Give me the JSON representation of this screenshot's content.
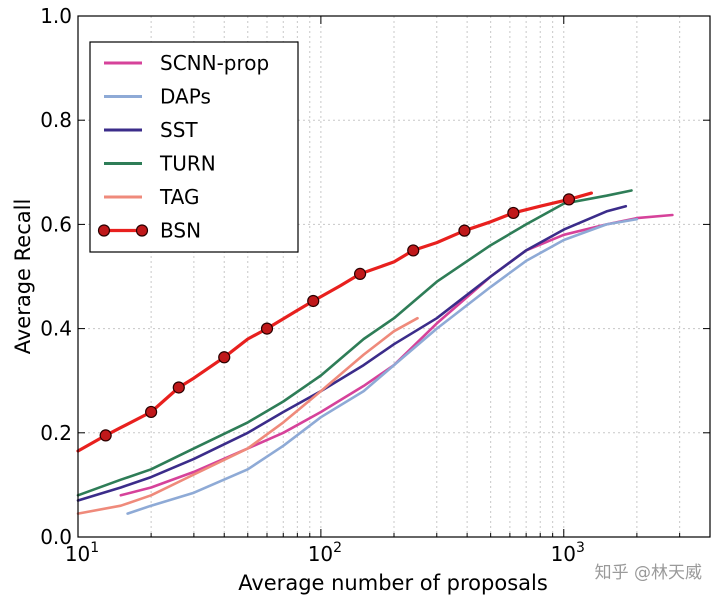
{
  "chart_data": {
    "type": "line",
    "title": "",
    "xlabel": "Average number of proposals",
    "ylabel": "Average Recall",
    "xscale": "log",
    "xlim": [
      10,
      4000
    ],
    "ylim": [
      0,
      1.0
    ],
    "x_ticks": [
      {
        "value": 10,
        "base": "10",
        "exp": "1"
      },
      {
        "value": 100,
        "base": "10",
        "exp": "2"
      },
      {
        "value": 1000,
        "base": "10",
        "exp": "3"
      }
    ],
    "y_ticks": [
      {
        "value": 0.0,
        "label": "0.0"
      },
      {
        "value": 0.2,
        "label": "0.2"
      },
      {
        "value": 0.4,
        "label": "0.4"
      },
      {
        "value": 0.6,
        "label": "0.6"
      },
      {
        "value": 0.8,
        "label": "0.8"
      },
      {
        "value": 1.0,
        "label": "1.0"
      }
    ],
    "grid": true,
    "legend_position": "top-left",
    "series": [
      {
        "name": "SCNN-prop",
        "color": "#d6429a",
        "marker": "none",
        "x": [
          15,
          20,
          30,
          50,
          70,
          100,
          150,
          200,
          300,
          500,
          700,
          1000,
          1500,
          2000,
          2800
        ],
        "y": [
          0.08,
          0.095,
          0.125,
          0.17,
          0.2,
          0.24,
          0.29,
          0.33,
          0.41,
          0.5,
          0.55,
          0.58,
          0.6,
          0.612,
          0.618
        ]
      },
      {
        "name": "DAPs",
        "color": "#8eaad6",
        "marker": "none",
        "x": [
          16,
          20,
          30,
          50,
          70,
          100,
          150,
          200,
          300,
          500,
          700,
          1000,
          1500,
          2000
        ],
        "y": [
          0.045,
          0.06,
          0.085,
          0.13,
          0.175,
          0.23,
          0.28,
          0.33,
          0.4,
          0.48,
          0.53,
          0.57,
          0.6,
          0.61
        ]
      },
      {
        "name": "SST",
        "color": "#3b2c8a",
        "marker": "none",
        "x": [
          10,
          15,
          20,
          30,
          50,
          70,
          100,
          150,
          200,
          300,
          500,
          700,
          1000,
          1500,
          1800
        ],
        "y": [
          0.07,
          0.095,
          0.115,
          0.15,
          0.2,
          0.24,
          0.28,
          0.33,
          0.37,
          0.42,
          0.5,
          0.55,
          0.59,
          0.625,
          0.635
        ]
      },
      {
        "name": "TURN",
        "color": "#2e7d57",
        "marker": "none",
        "x": [
          10,
          15,
          20,
          30,
          50,
          70,
          100,
          150,
          200,
          300,
          500,
          700,
          1000,
          1500,
          1900
        ],
        "y": [
          0.08,
          0.11,
          0.13,
          0.17,
          0.22,
          0.26,
          0.31,
          0.38,
          0.42,
          0.49,
          0.56,
          0.6,
          0.64,
          0.655,
          0.665
        ]
      },
      {
        "name": "TAG",
        "color": "#ef8a7b",
        "marker": "none",
        "x": [
          10,
          15,
          20,
          30,
          50,
          70,
          100,
          150,
          200,
          250
        ],
        "y": [
          0.045,
          0.06,
          0.08,
          0.12,
          0.17,
          0.22,
          0.28,
          0.35,
          0.395,
          0.42
        ]
      },
      {
        "name": "BSN",
        "color": "#e8201e",
        "marker": "circle",
        "x": [
          10,
          13,
          15,
          20,
          26,
          30,
          40,
          50,
          60,
          80,
          93,
          120,
          145,
          200,
          240,
          300,
          390,
          500,
          620,
          800,
          1050,
          1300
        ],
        "y": [
          0.165,
          0.195,
          0.21,
          0.24,
          0.287,
          0.305,
          0.345,
          0.38,
          0.4,
          0.435,
          0.453,
          0.482,
          0.505,
          0.528,
          0.55,
          0.565,
          0.588,
          0.605,
          0.622,
          0.635,
          0.648,
          0.66
        ],
        "marker_x": [
          13,
          20,
          26,
          40,
          60,
          93,
          145,
          240,
          390,
          620,
          1050
        ]
      }
    ]
  },
  "watermark": "知乎 @林天威"
}
